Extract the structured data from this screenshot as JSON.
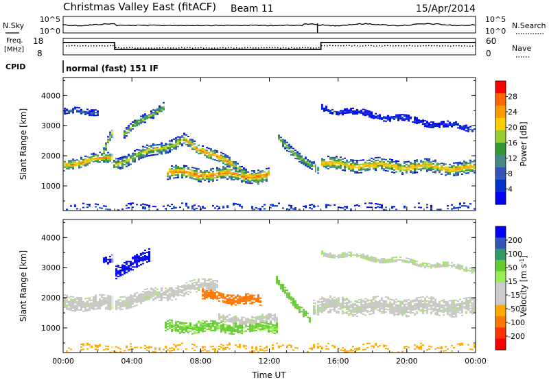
{
  "header": {
    "title": "Christmas Valley East (fitACF)",
    "beam": "Beam 11",
    "date": "15/Apr/2014"
  },
  "panels": {
    "sky": {
      "left_label": "N.Sky",
      "left_ticks": [
        "10^5",
        "10^0"
      ],
      "right_label": "N.Search",
      "right_ticks": [
        "10^5",
        "10^0"
      ]
    },
    "freq": {
      "left_label_1": "Freq.",
      "left_label_2": "[MHz]",
      "left_ticks": [
        "18",
        "8"
      ],
      "right_label": "Nave",
      "right_ticks": [
        "60",
        "0"
      ]
    },
    "cpid": {
      "label": "CPID",
      "text": "normal (fast) 151 IF"
    }
  },
  "colorbars": {
    "power": {
      "label": "Power [dB]",
      "ticks": [
        "28",
        "24",
        "20",
        "16",
        "12",
        "8",
        "4"
      ],
      "colors": [
        "#ff0000",
        "#ff6600",
        "#ff9900",
        "#ffcc00",
        "#99cc33",
        "#339933",
        "#448888",
        "#3355bb",
        "#0033cc",
        "#0000ff"
      ]
    },
    "velocity": {
      "label": "Velocity [m s",
      "label_sup": "-1",
      "label_end": "]",
      "ticks": [
        "200",
        "100",
        "50",
        "15",
        "-15",
        "-50",
        "-100",
        "-200"
      ],
      "colors": [
        "#0000ff",
        "#3355bb",
        "#339966",
        "#66cc33",
        "#99ee55",
        "#cccccc",
        "#cccccc",
        "#ffaa00",
        "#ff7700",
        "#ff3300",
        "#ff0000"
      ]
    }
  },
  "chart_data": [
    {
      "type": "heatmap",
      "title": "Power",
      "xlabel": "",
      "ylabel": "Slant Range [km]",
      "x_ticks": [
        "00:00",
        "04:00",
        "08:00",
        "12:00",
        "16:00",
        "20:00",
        "00:00"
      ],
      "y_ticks": [
        "4000",
        "3000",
        "2000",
        "1000"
      ],
      "xlim_hours": [
        0,
        24
      ],
      "ylim_km": [
        180,
        4600
      ],
      "bands": [
        {
          "name": "band-a",
          "t0": 0.0,
          "t1": 2.8,
          "r0": 1750,
          "r1": 1950,
          "width": 360,
          "value": 24
        },
        {
          "name": "band-a2",
          "t0": 2.2,
          "t1": 2.9,
          "r0": 1950,
          "r1": 2900,
          "width": 320,
          "value": 20
        },
        {
          "name": "band-b",
          "t0": 2.9,
          "t1": 7.0,
          "r0": 1750,
          "r1": 2550,
          "width": 380,
          "value": 20
        },
        {
          "name": "band-b2",
          "t0": 7.0,
          "t1": 11.4,
          "r0": 2550,
          "r1": 1200,
          "width": 360,
          "value": 24
        },
        {
          "name": "band-c",
          "t0": 6.0,
          "t1": 12.0,
          "r0": 1450,
          "r1": 1350,
          "width": 420,
          "value": 26
        },
        {
          "name": "band-d",
          "t0": 12.4,
          "t1": 14.8,
          "r0": 2600,
          "r1": 1500,
          "width": 300,
          "value": 18
        },
        {
          "name": "band-e",
          "t0": 15.0,
          "t1": 24.0,
          "r0": 1750,
          "r1": 1600,
          "width": 420,
          "value": 24
        },
        {
          "name": "upper-a",
          "t0": 0.0,
          "t1": 2.0,
          "r0": 3450,
          "r1": 3500,
          "width": 220,
          "value": 10
        },
        {
          "name": "upper-b",
          "t0": 3.4,
          "t1": 5.8,
          "r0": 2700,
          "r1": 3700,
          "width": 280,
          "value": 18
        },
        {
          "name": "upper-c",
          "t0": 15.0,
          "t1": 24.0,
          "r0": 3600,
          "r1": 2900,
          "width": 200,
          "value": 6
        },
        {
          "name": "ground",
          "t0": 0.0,
          "t1": 24.0,
          "r0": 300,
          "r1": 300,
          "width": 180,
          "value": 8
        }
      ]
    },
    {
      "type": "heatmap",
      "title": "Velocity",
      "xlabel": "Time UT",
      "ylabel": "Slant Range [km]",
      "x_ticks": [
        "00:00",
        "04:00",
        "08:00",
        "12:00",
        "16:00",
        "20:00",
        "00:00"
      ],
      "y_ticks": [
        "4000",
        "3000",
        "2000",
        "1000"
      ],
      "xlim_hours": [
        0,
        24
      ],
      "ylim_km": [
        180,
        4600
      ],
      "bands": [
        {
          "name": "grey-a",
          "t0": 0.0,
          "t1": 2.8,
          "r0": 1850,
          "r1": 1800,
          "width": 500,
          "value": 0
        },
        {
          "name": "blue-a",
          "t0": 2.3,
          "t1": 2.8,
          "r0": 3200,
          "r1": 3250,
          "width": 280,
          "value": 220
        },
        {
          "name": "blue-b",
          "t0": 3.0,
          "t1": 5.0,
          "r0": 2900,
          "r1": 3400,
          "width": 420,
          "value": 220
        },
        {
          "name": "grey-b",
          "t0": 3.0,
          "t1": 9.0,
          "r0": 1850,
          "r1": 2500,
          "width": 420,
          "value": 0
        },
        {
          "name": "orange-a",
          "t0": 8.0,
          "t1": 11.5,
          "r0": 2100,
          "r1": 1900,
          "width": 320,
          "value": -60
        },
        {
          "name": "green-a",
          "t0": 5.8,
          "t1": 12.4,
          "r0": 1050,
          "r1": 1050,
          "width": 380,
          "value": 25
        },
        {
          "name": "grey-c",
          "t0": 9.0,
          "t1": 12.4,
          "r0": 1300,
          "r1": 1300,
          "width": 260,
          "value": 0
        },
        {
          "name": "green-b",
          "t0": 12.3,
          "t1": 14.3,
          "r0": 2600,
          "r1": 1300,
          "width": 260,
          "value": 30
        },
        {
          "name": "grey-d",
          "t0": 14.5,
          "t1": 24.0,
          "r0": 1750,
          "r1": 1700,
          "width": 560,
          "value": 0
        },
        {
          "name": "faint-a",
          "t0": 15.0,
          "t1": 24.0,
          "r0": 3500,
          "r1": 2950,
          "width": 180,
          "value": 5
        },
        {
          "name": "ground-v",
          "t0": 0.0,
          "t1": 24.0,
          "r0": 350,
          "r1": 350,
          "width": 200,
          "value": -40
        }
      ]
    }
  ]
}
